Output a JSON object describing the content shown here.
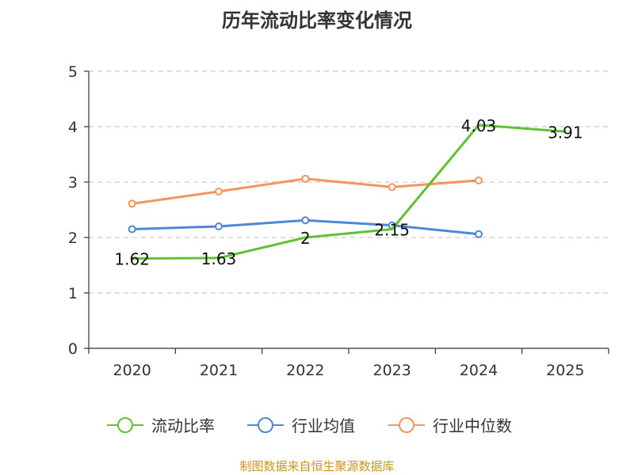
{
  "chart_data": {
    "type": "line",
    "title": "历年流动比率变化情况",
    "categories": [
      "2020",
      "2021",
      "2022",
      "2023",
      "2024",
      "2025"
    ],
    "y_ticks": [
      "0",
      "1",
      "2",
      "3",
      "4",
      "5"
    ],
    "ylim": [
      0,
      5
    ],
    "grid": true,
    "legend_position": "bottom",
    "series": [
      {
        "name": "流动比率",
        "color": "#5ec232",
        "values": [
          1.62,
          1.63,
          2,
          2.15,
          4.03,
          3.91
        ],
        "labels": [
          "1.62",
          "1.63",
          "2",
          "2.15",
          "4.03",
          "3.91"
        ]
      },
      {
        "name": "行业均值",
        "color": "#4e86d9",
        "values": [
          2.15,
          2.2,
          2.31,
          2.22,
          2.06,
          null
        ]
      },
      {
        "name": "行业中位数",
        "color": "#f7935e",
        "values": [
          2.61,
          2.83,
          3.06,
          2.91,
          3.03,
          null
        ]
      }
    ],
    "source": "制图数据来自恒生聚源数据库",
    "source_color": "#c8961e"
  }
}
